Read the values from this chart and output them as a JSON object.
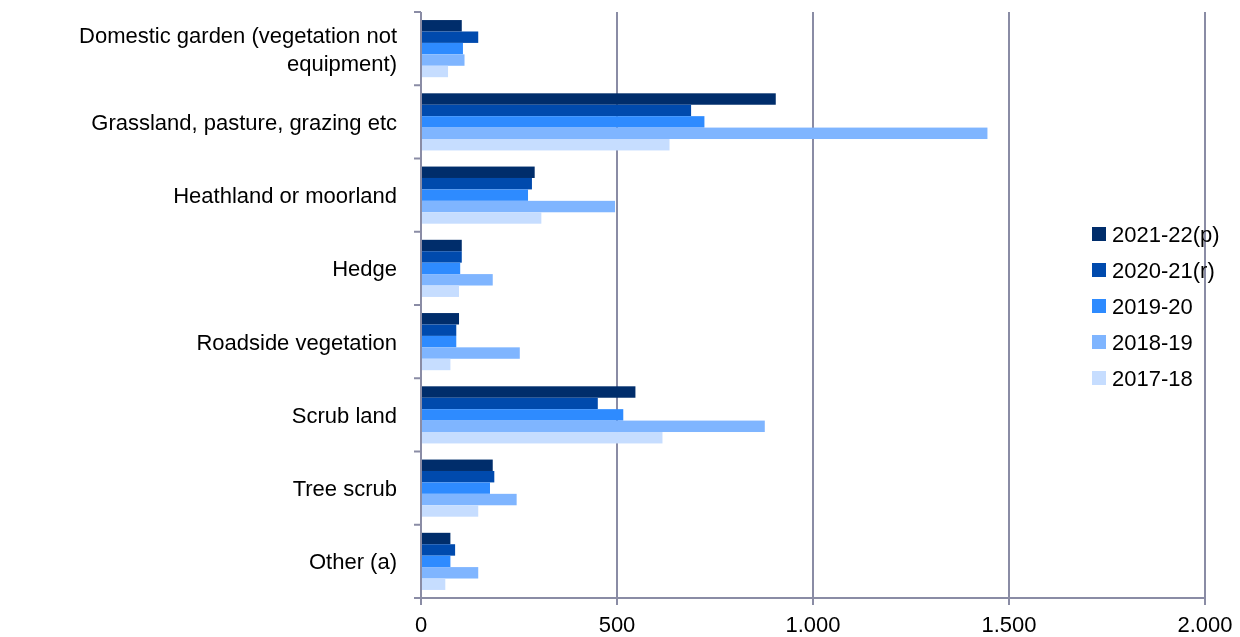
{
  "chart_data": {
    "type": "bar",
    "orientation": "horizontal",
    "categories": [
      "Domestic garden (vegetation not equipment)",
      "Grassland, pasture, grazing etc",
      "Heathland or moorland",
      "Hedge",
      "Roadside vegetation",
      "Scrub land",
      "Tree scrub",
      "Other (a)"
    ],
    "series": [
      {
        "name": "2021-22(p)",
        "color": "#002d6b",
        "values": [
          104,
          905,
          290,
          104,
          97,
          547,
          183,
          75
        ]
      },
      {
        "name": "2020-21(r)",
        "color": "#004aad",
        "values": [
          146,
          689,
          283,
          104,
          90,
          451,
          187,
          87
        ]
      },
      {
        "name": "2019-20",
        "color": "#2e8bff",
        "values": [
          107,
          723,
          273,
          100,
          90,
          516,
          176,
          75
        ]
      },
      {
        "name": "2018-19",
        "color": "#7fb5ff",
        "values": [
          111,
          1445,
          495,
          183,
          252,
          877,
          244,
          146
        ]
      },
      {
        "name": "2017-18",
        "color": "#c6ddff",
        "values": [
          69,
          634,
          307,
          97,
          75,
          616,
          146,
          62
        ]
      }
    ],
    "xlim": [
      0,
      2000
    ],
    "xticks": [
      0,
      {
        "value": 500,
        "label": "500"
      },
      {
        "value": 1000,
        "label": "1.000"
      },
      {
        "value": 1500,
        "label": "1.500"
      },
      {
        "value": 2000,
        "label": "2.000"
      }
    ],
    "grid": "x",
    "legend": "right"
  }
}
